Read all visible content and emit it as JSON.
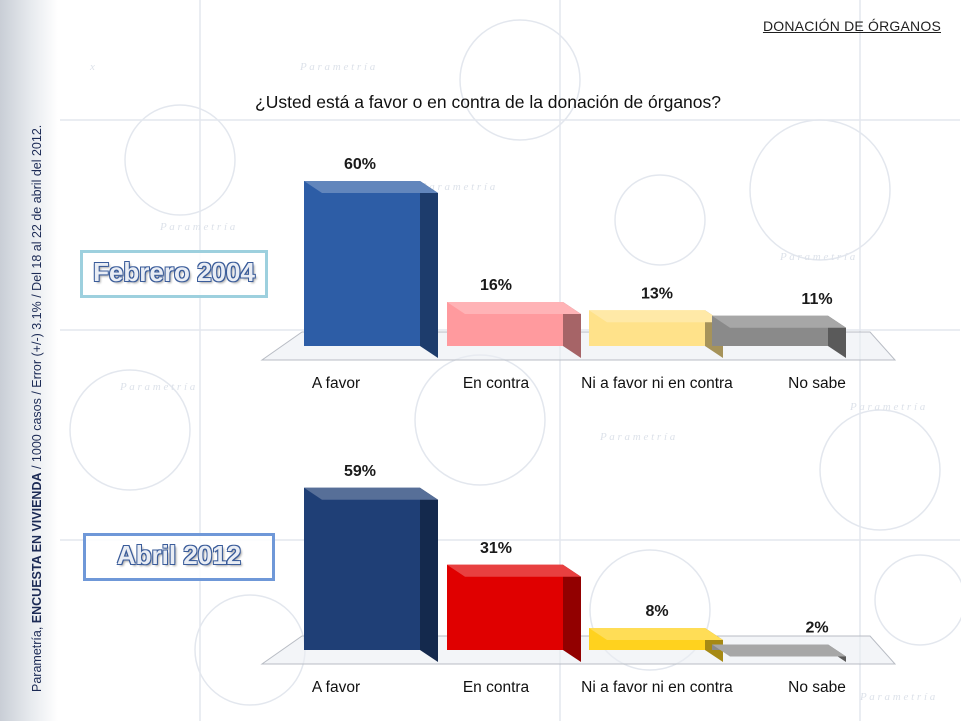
{
  "header": {
    "section_title": "DONACIÓN DE ÓRGANOS",
    "question": "¿Usted está a favor o en contra de la donación de órganos?"
  },
  "side_note": {
    "source": "Parametría, ",
    "survey": "ENCUESTA EN VIVIENDA",
    "details": " / 1000 casos / Error (+/-) 3.1% / Del 18 al 22 de abril del 2012."
  },
  "colors": {
    "feb_2004": [
      "#2d5da6",
      "#ff9a9e",
      "#ffe28a",
      "#8a8a8a"
    ],
    "abr_2012": [
      "#1f3f76",
      "#e00000",
      "#ffd21e",
      "#8a8a8a"
    ]
  },
  "chart_data": [
    {
      "type": "bar",
      "period": "Febrero 2004",
      "categories": [
        "A favor",
        "En contra",
        "Ni a favor ni en contra",
        "No sabe"
      ],
      "values": [
        60,
        16,
        13,
        11
      ],
      "value_labels": [
        "60%",
        "16%",
        "13%",
        "11%"
      ],
      "ylim": [
        0,
        60
      ],
      "grid": false,
      "style": "3d-bar"
    },
    {
      "type": "bar",
      "period": "Abril 2012",
      "categories": [
        "A favor",
        "En contra",
        "Ni a favor ni en contra",
        "No sabe"
      ],
      "values": [
        59,
        31,
        8,
        2
      ],
      "value_labels": [
        "59%",
        "31%",
        "8%",
        "2%"
      ],
      "ylim": [
        0,
        60
      ],
      "grid": false,
      "style": "3d-bar"
    }
  ]
}
